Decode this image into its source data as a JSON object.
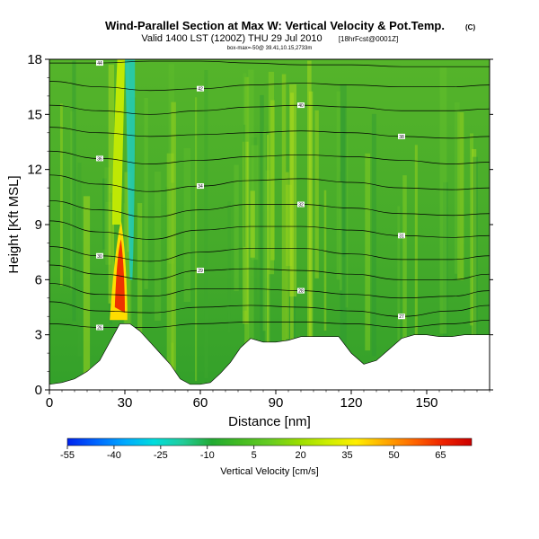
{
  "chart_data": {
    "type": "heatmap",
    "title": "Wind-Parallel Section at Max W: Vertical Velocity & Pot.Temp.",
    "title_mark": "(C)",
    "subtitle": "Valid 1400 LST (1200Z) THU 29 Jul 2010",
    "subtitle_small": "[18hrFcst@0001Z]",
    "subtitle2": "box-max=-50@ 39.41,10.15,2733m",
    "xlabel": "Distance [nm]",
    "ylabel": "Height [Kft MSL]",
    "xlim": [
      0,
      175
    ],
    "ylim": [
      0,
      18
    ],
    "xticks": [
      0,
      30,
      60,
      90,
      120,
      150
    ],
    "yticks": [
      0,
      3,
      6,
      9,
      12,
      15,
      18
    ],
    "colorbar": {
      "label": "Vertical Velocity [cm/s]",
      "ticks": [
        -55,
        -40,
        -25,
        -10,
        5,
        20,
        35,
        50,
        65
      ],
      "range": [
        -55,
        75
      ],
      "colors": [
        "#0022ee",
        "#0066ff",
        "#00aaff",
        "#00dddd",
        "#22cc99",
        "#22aa33",
        "#44bb22",
        "#66cc22",
        "#99dd00",
        "#ccee00",
        "#ffee00",
        "#ffaa00",
        "#ff6600",
        "#ee2200",
        "#cc0000"
      ]
    },
    "field_note": "vertical velocity shading with potential temperature contours; terrain masked in white",
    "terrain": {
      "x": [
        0,
        5,
        10,
        15,
        20,
        24,
        28,
        32,
        36,
        40,
        44,
        48,
        52,
        56,
        60,
        64,
        68,
        72,
        76,
        80,
        85,
        90,
        95,
        100,
        105,
        110,
        115,
        120,
        125,
        130,
        135,
        140,
        145,
        150,
        155,
        160,
        165,
        170,
        175
      ],
      "y": [
        0.3,
        0.4,
        0.6,
        1.0,
        1.6,
        2.6,
        3.6,
        3.6,
        3.2,
        2.6,
        2.0,
        1.4,
        0.6,
        0.3,
        0.3,
        0.4,
        0.9,
        1.5,
        2.3,
        2.8,
        2.6,
        2.6,
        2.7,
        2.9,
        2.9,
        2.9,
        2.9,
        2.0,
        1.4,
        1.6,
        2.2,
        2.8,
        3.0,
        3.0,
        2.9,
        2.9,
        3.0,
        3.0,
        3.0
      ]
    },
    "theta_contours": [
      {
        "label": "44",
        "y": [
          17.8,
          17.8,
          17.9,
          17.9,
          17.8,
          17.7,
          17.7,
          17.6,
          17.6,
          17.6
        ]
      },
      {
        "label": "42",
        "y": [
          16.8,
          16.5,
          16.3,
          16.4,
          16.6,
          16.7,
          16.6,
          16.5,
          16.5,
          16.6
        ]
      },
      {
        "label": "40",
        "y": [
          15.5,
          15.2,
          15.0,
          15.2,
          15.4,
          15.5,
          15.4,
          15.2,
          15.2,
          15.3
        ]
      },
      {
        "label": "38",
        "y": [
          14.3,
          14.0,
          13.8,
          13.9,
          14.0,
          14.1,
          14.0,
          13.8,
          13.7,
          13.8
        ]
      },
      {
        "label": "36",
        "y": [
          13.0,
          12.6,
          12.3,
          12.5,
          12.7,
          12.8,
          12.7,
          12.5,
          12.3,
          12.4
        ]
      },
      {
        "label": "34",
        "y": [
          11.7,
          11.2,
          10.8,
          11.1,
          11.4,
          11.5,
          11.3,
          11.0,
          10.9,
          11.0
        ]
      },
      {
        "label": "32",
        "y": [
          10.3,
          9.8,
          9.4,
          9.8,
          10.1,
          10.1,
          9.9,
          9.6,
          9.5,
          9.6
        ]
      },
      {
        "label": "31",
        "y": [
          9.2,
          8.6,
          8.2,
          8.7,
          8.9,
          8.9,
          8.7,
          8.4,
          8.3,
          8.4
        ]
      },
      {
        "label": "30",
        "y": [
          7.8,
          7.3,
          7.0,
          7.5,
          7.7,
          7.7,
          7.4,
          7.1,
          7.1,
          7.3
        ]
      },
      {
        "label": "29",
        "y": [
          6.8,
          6.3,
          6.0,
          6.5,
          6.6,
          6.5,
          6.3,
          6.0,
          6.0,
          6.3
        ]
      },
      {
        "label": "28",
        "y": [
          5.8,
          5.2,
          5.1,
          5.5,
          5.5,
          5.4,
          5.2,
          5.0,
          5.1,
          5.4
        ]
      },
      {
        "label": "27",
        "y": [
          4.8,
          4.3,
          4.2,
          4.5,
          4.6,
          4.5,
          4.3,
          4.0,
          4.3,
          4.6
        ]
      },
      {
        "label": "26",
        "y": [
          3.6,
          3.4,
          3.4,
          3.6,
          3.7,
          3.7,
          3.6,
          3.4,
          3.6,
          3.8
        ]
      }
    ],
    "contour_x": [
      0,
      20,
      40,
      60,
      80,
      100,
      120,
      140,
      160,
      175
    ]
  }
}
